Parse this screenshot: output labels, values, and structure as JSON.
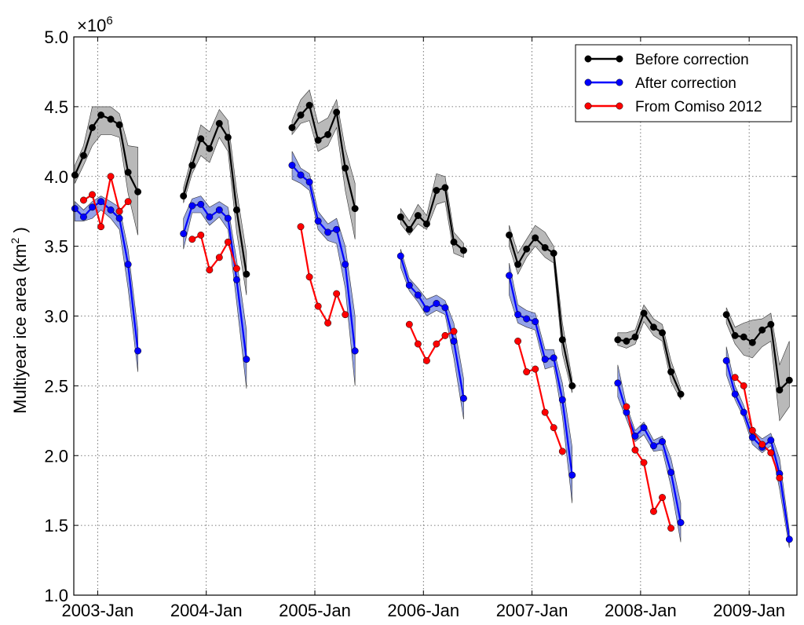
{
  "chart_data": {
    "type": "line",
    "title": "",
    "xlabel": "",
    "ylabel": "Multiyear ice area (km",
    "ylabel_sup": "2",
    "ylabel_suffix": " )",
    "y_multiplier": "×10",
    "y_multiplier_exp": "6",
    "ylim": [
      1.0,
      5.0
    ],
    "xlim": [
      2002.78,
      2009.44
    ],
    "yticks": [
      1.0,
      1.5,
      2.0,
      2.5,
      3.0,
      3.5,
      4.0,
      4.5,
      5.0
    ],
    "ytick_labels": [
      "1.0",
      "1.5",
      "2.0",
      "2.5",
      "3.0",
      "3.5",
      "4.0",
      "4.5",
      "5.0"
    ],
    "xticks": [
      2003.0,
      2004.0,
      2005.0,
      2006.0,
      2007.0,
      2008.0,
      2009.0
    ],
    "xtick_labels": [
      "2003-Jan",
      "2004-Jan",
      "2005-Jan",
      "2006-Jan",
      "2007-Jan",
      "2008-Jan",
      "2009-Jan"
    ],
    "grid": true,
    "legend_position": "top-right",
    "series": [
      {
        "name": "Before correction",
        "color": "#000000",
        "band_color": "#808080",
        "segments": [
          {
            "x": [
              2002.79,
              2002.87,
              2002.95,
              2003.03,
              2003.12,
              2003.2,
              2003.28,
              2003.37
            ],
            "y": [
              4.01,
              4.15,
              4.35,
              4.44,
              4.41,
              4.37,
              4.03,
              3.89
            ],
            "lo": [
              3.95,
              4.08,
              4.22,
              4.3,
              4.3,
              4.28,
              3.88,
              3.58
            ],
            "hi": [
              4.08,
              4.22,
              4.5,
              4.5,
              4.5,
              4.45,
              4.22,
              4.21
            ]
          },
          {
            "x": [
              2003.79,
              2003.87,
              2003.95,
              2004.03,
              2004.12,
              2004.2,
              2004.28,
              2004.37
            ],
            "y": [
              3.86,
              4.08,
              4.27,
              4.2,
              4.38,
              4.28,
              3.76,
              3.3
            ],
            "lo": [
              3.81,
              4.02,
              4.15,
              4.1,
              4.28,
              4.18,
              3.6,
              3.15
            ],
            "hi": [
              3.92,
              4.15,
              4.37,
              4.32,
              4.48,
              4.4,
              3.9,
              3.45
            ]
          },
          {
            "x": [
              2004.79,
              2004.87,
              2004.95,
              2005.03,
              2005.12,
              2005.2,
              2005.28,
              2005.37
            ],
            "y": [
              4.35,
              4.44,
              4.51,
              4.26,
              4.3,
              4.46,
              4.06,
              3.77
            ],
            "lo": [
              4.3,
              4.38,
              4.4,
              4.18,
              4.22,
              4.35,
              3.9,
              3.55
            ],
            "hi": [
              4.4,
              4.55,
              4.62,
              4.38,
              4.42,
              4.55,
              4.2,
              3.95
            ]
          },
          {
            "x": [
              2005.79,
              2005.87,
              2005.95,
              2006.03,
              2006.12,
              2006.2,
              2006.28,
              2006.37
            ],
            "y": [
              3.71,
              3.62,
              3.72,
              3.66,
              3.9,
              3.92,
              3.53,
              3.47
            ],
            "lo": [
              3.66,
              3.58,
              3.66,
              3.62,
              3.8,
              3.82,
              3.45,
              3.42
            ],
            "hi": [
              3.77,
              3.68,
              3.8,
              3.72,
              4.02,
              4.0,
              3.6,
              3.52
            ]
          },
          {
            "x": [
              2006.79,
              2006.87,
              2006.95,
              2007.03,
              2007.12,
              2007.2,
              2007.28,
              2007.37
            ],
            "y": [
              3.58,
              3.37,
              3.48,
              3.56,
              3.49,
              3.45,
              2.83,
              2.5
            ],
            "lo": [
              3.5,
              3.3,
              3.42,
              3.5,
              3.42,
              3.38,
              2.73,
              2.45
            ],
            "hi": [
              3.65,
              3.45,
              3.55,
              3.65,
              3.6,
              3.5,
              2.95,
              2.55
            ]
          },
          {
            "x": [
              2007.79,
              2007.87,
              2007.95,
              2008.03,
              2008.12,
              2008.2,
              2008.28,
              2008.37
            ],
            "y": [
              2.83,
              2.82,
              2.85,
              3.02,
              2.92,
              2.88,
              2.6,
              2.44
            ],
            "lo": [
              2.79,
              2.77,
              2.8,
              2.96,
              2.86,
              2.82,
              2.53,
              2.4
            ],
            "hi": [
              2.88,
              2.88,
              2.9,
              3.08,
              2.98,
              2.94,
              2.68,
              2.48
            ]
          },
          {
            "x": [
              2008.79,
              2008.87,
              2008.95,
              2009.03,
              2009.12,
              2009.2,
              2009.28,
              2009.37
            ],
            "y": [
              3.01,
              2.86,
              2.85,
              2.81,
              2.9,
              2.94,
              2.47,
              2.54
            ],
            "lo": [
              2.95,
              2.8,
              2.72,
              2.7,
              2.78,
              2.82,
              2.25,
              2.35
            ],
            "hi": [
              3.06,
              2.92,
              2.95,
              2.97,
              2.98,
              3.02,
              2.65,
              2.82
            ]
          }
        ]
      },
      {
        "name": "After correction",
        "color": "#0000ff",
        "band_color": "#3a55d6",
        "segments": [
          {
            "x": [
              2002.79,
              2002.87,
              2002.95,
              2003.03,
              2003.12,
              2003.2,
              2003.28,
              2003.37
            ],
            "y": [
              3.77,
              3.71,
              3.78,
              3.82,
              3.76,
              3.7,
              3.37,
              2.75
            ],
            "lo": [
              3.68,
              3.68,
              3.7,
              3.76,
              3.7,
              3.62,
              3.2,
              2.6
            ],
            "hi": [
              3.82,
              3.76,
              3.82,
              3.86,
              3.82,
              3.78,
              3.48,
              2.9
            ]
          },
          {
            "x": [
              2003.79,
              2003.87,
              2003.95,
              2004.03,
              2004.12,
              2004.2,
              2004.28,
              2004.37
            ],
            "y": [
              3.59,
              3.79,
              3.8,
              3.71,
              3.76,
              3.7,
              3.26,
              2.69
            ],
            "lo": [
              3.48,
              3.74,
              3.74,
              3.65,
              3.71,
              3.62,
              3.1,
              2.48
            ],
            "hi": [
              3.7,
              3.84,
              3.86,
              3.78,
              3.82,
              3.78,
              3.4,
              2.9
            ]
          },
          {
            "x": [
              2004.79,
              2004.87,
              2004.95,
              2005.03,
              2005.12,
              2005.2,
              2005.28,
              2005.37
            ],
            "y": [
              4.08,
              4.01,
              3.96,
              3.68,
              3.6,
              3.62,
              3.37,
              2.75
            ],
            "lo": [
              3.98,
              3.95,
              3.9,
              3.62,
              3.54,
              3.52,
              3.2,
              2.5
            ],
            "hi": [
              4.18,
              4.06,
              4.02,
              3.75,
              3.66,
              3.7,
              3.5,
              3.0
            ]
          },
          {
            "x": [
              2005.79,
              2005.87,
              2005.95,
              2006.03,
              2006.12,
              2006.2,
              2006.28,
              2006.37
            ],
            "y": [
              3.43,
              3.22,
              3.15,
              3.05,
              3.09,
              3.06,
              2.82,
              2.41
            ],
            "lo": [
              3.35,
              3.18,
              3.1,
              3.0,
              3.04,
              3.01,
              2.7,
              2.26
            ],
            "hi": [
              3.48,
              3.27,
              3.2,
              3.12,
              3.15,
              3.11,
              2.95,
              2.55
            ]
          },
          {
            "x": [
              2006.79,
              2006.87,
              2006.95,
              2007.03,
              2007.12,
              2007.2,
              2007.28,
              2007.37
            ],
            "y": [
              3.29,
              3.01,
              2.98,
              2.96,
              2.69,
              2.7,
              2.4,
              1.86
            ],
            "lo": [
              3.15,
              2.95,
              2.92,
              2.9,
              2.62,
              2.64,
              2.28,
              1.66
            ],
            "hi": [
              3.38,
              3.08,
              3.04,
              3.02,
              2.76,
              2.76,
              2.52,
              2.06
            ]
          },
          {
            "x": [
              2007.79,
              2007.87,
              2007.95,
              2008.03,
              2008.12,
              2008.2,
              2008.28,
              2008.37
            ],
            "y": [
              2.52,
              2.31,
              2.14,
              2.2,
              2.07,
              2.1,
              1.88,
              1.52
            ],
            "lo": [
              2.42,
              2.26,
              2.1,
              2.15,
              2.03,
              2.04,
              1.78,
              1.38
            ],
            "hi": [
              2.65,
              2.36,
              2.18,
              2.24,
              2.11,
              2.14,
              1.98,
              1.66
            ]
          },
          {
            "x": [
              2008.79,
              2008.87,
              2008.95,
              2009.03,
              2009.12,
              2009.2,
              2009.28,
              2009.37
            ],
            "y": [
              2.68,
              2.44,
              2.31,
              2.13,
              2.06,
              2.11,
              1.87,
              1.4
            ],
            "lo": [
              2.58,
              2.4,
              2.27,
              2.08,
              2.02,
              2.07,
              1.76,
              1.34
            ],
            "hi": [
              2.78,
              2.5,
              2.36,
              2.18,
              2.12,
              2.16,
              1.98,
              1.46
            ]
          }
        ]
      },
      {
        "name": "From Comiso 2012",
        "color": "#ff0000",
        "segments": [
          {
            "x": [
              2002.87,
              2002.95,
              2003.03,
              2003.12,
              2003.2,
              2003.28
            ],
            "y": [
              3.83,
              3.87,
              3.64,
              4.0,
              3.75,
              3.82
            ]
          },
          {
            "x": [
              2003.87,
              2003.95,
              2004.03,
              2004.12,
              2004.2,
              2004.28
            ],
            "y": [
              3.55,
              3.58,
              3.33,
              3.42,
              3.53,
              3.34
            ]
          },
          {
            "x": [
              2004.87,
              2004.95,
              2005.03,
              2005.12,
              2005.2,
              2005.28
            ],
            "y": [
              3.64,
              3.28,
              3.07,
              2.95,
              3.16,
              3.01
            ]
          },
          {
            "x": [
              2005.87,
              2005.95,
              2006.03,
              2006.12,
              2006.2,
              2006.28
            ],
            "y": [
              2.94,
              2.8,
              2.68,
              2.8,
              2.86,
              2.89
            ]
          },
          {
            "x": [
              2006.87,
              2006.95,
              2007.03,
              2007.12,
              2007.2,
              2007.28
            ],
            "y": [
              2.82,
              2.6,
              2.62,
              2.31,
              2.2,
              2.03
            ]
          },
          {
            "x": [
              2007.87,
              2007.95,
              2008.03,
              2008.12,
              2008.2,
              2008.28
            ],
            "y": [
              2.35,
              2.04,
              1.95,
              1.6,
              1.7,
              1.48
            ]
          },
          {
            "x": [
              2008.87,
              2008.95,
              2009.03,
              2009.12,
              2009.2,
              2009.28
            ],
            "y": [
              2.56,
              2.5,
              2.18,
              2.08,
              2.02,
              1.84
            ]
          }
        ]
      }
    ]
  }
}
